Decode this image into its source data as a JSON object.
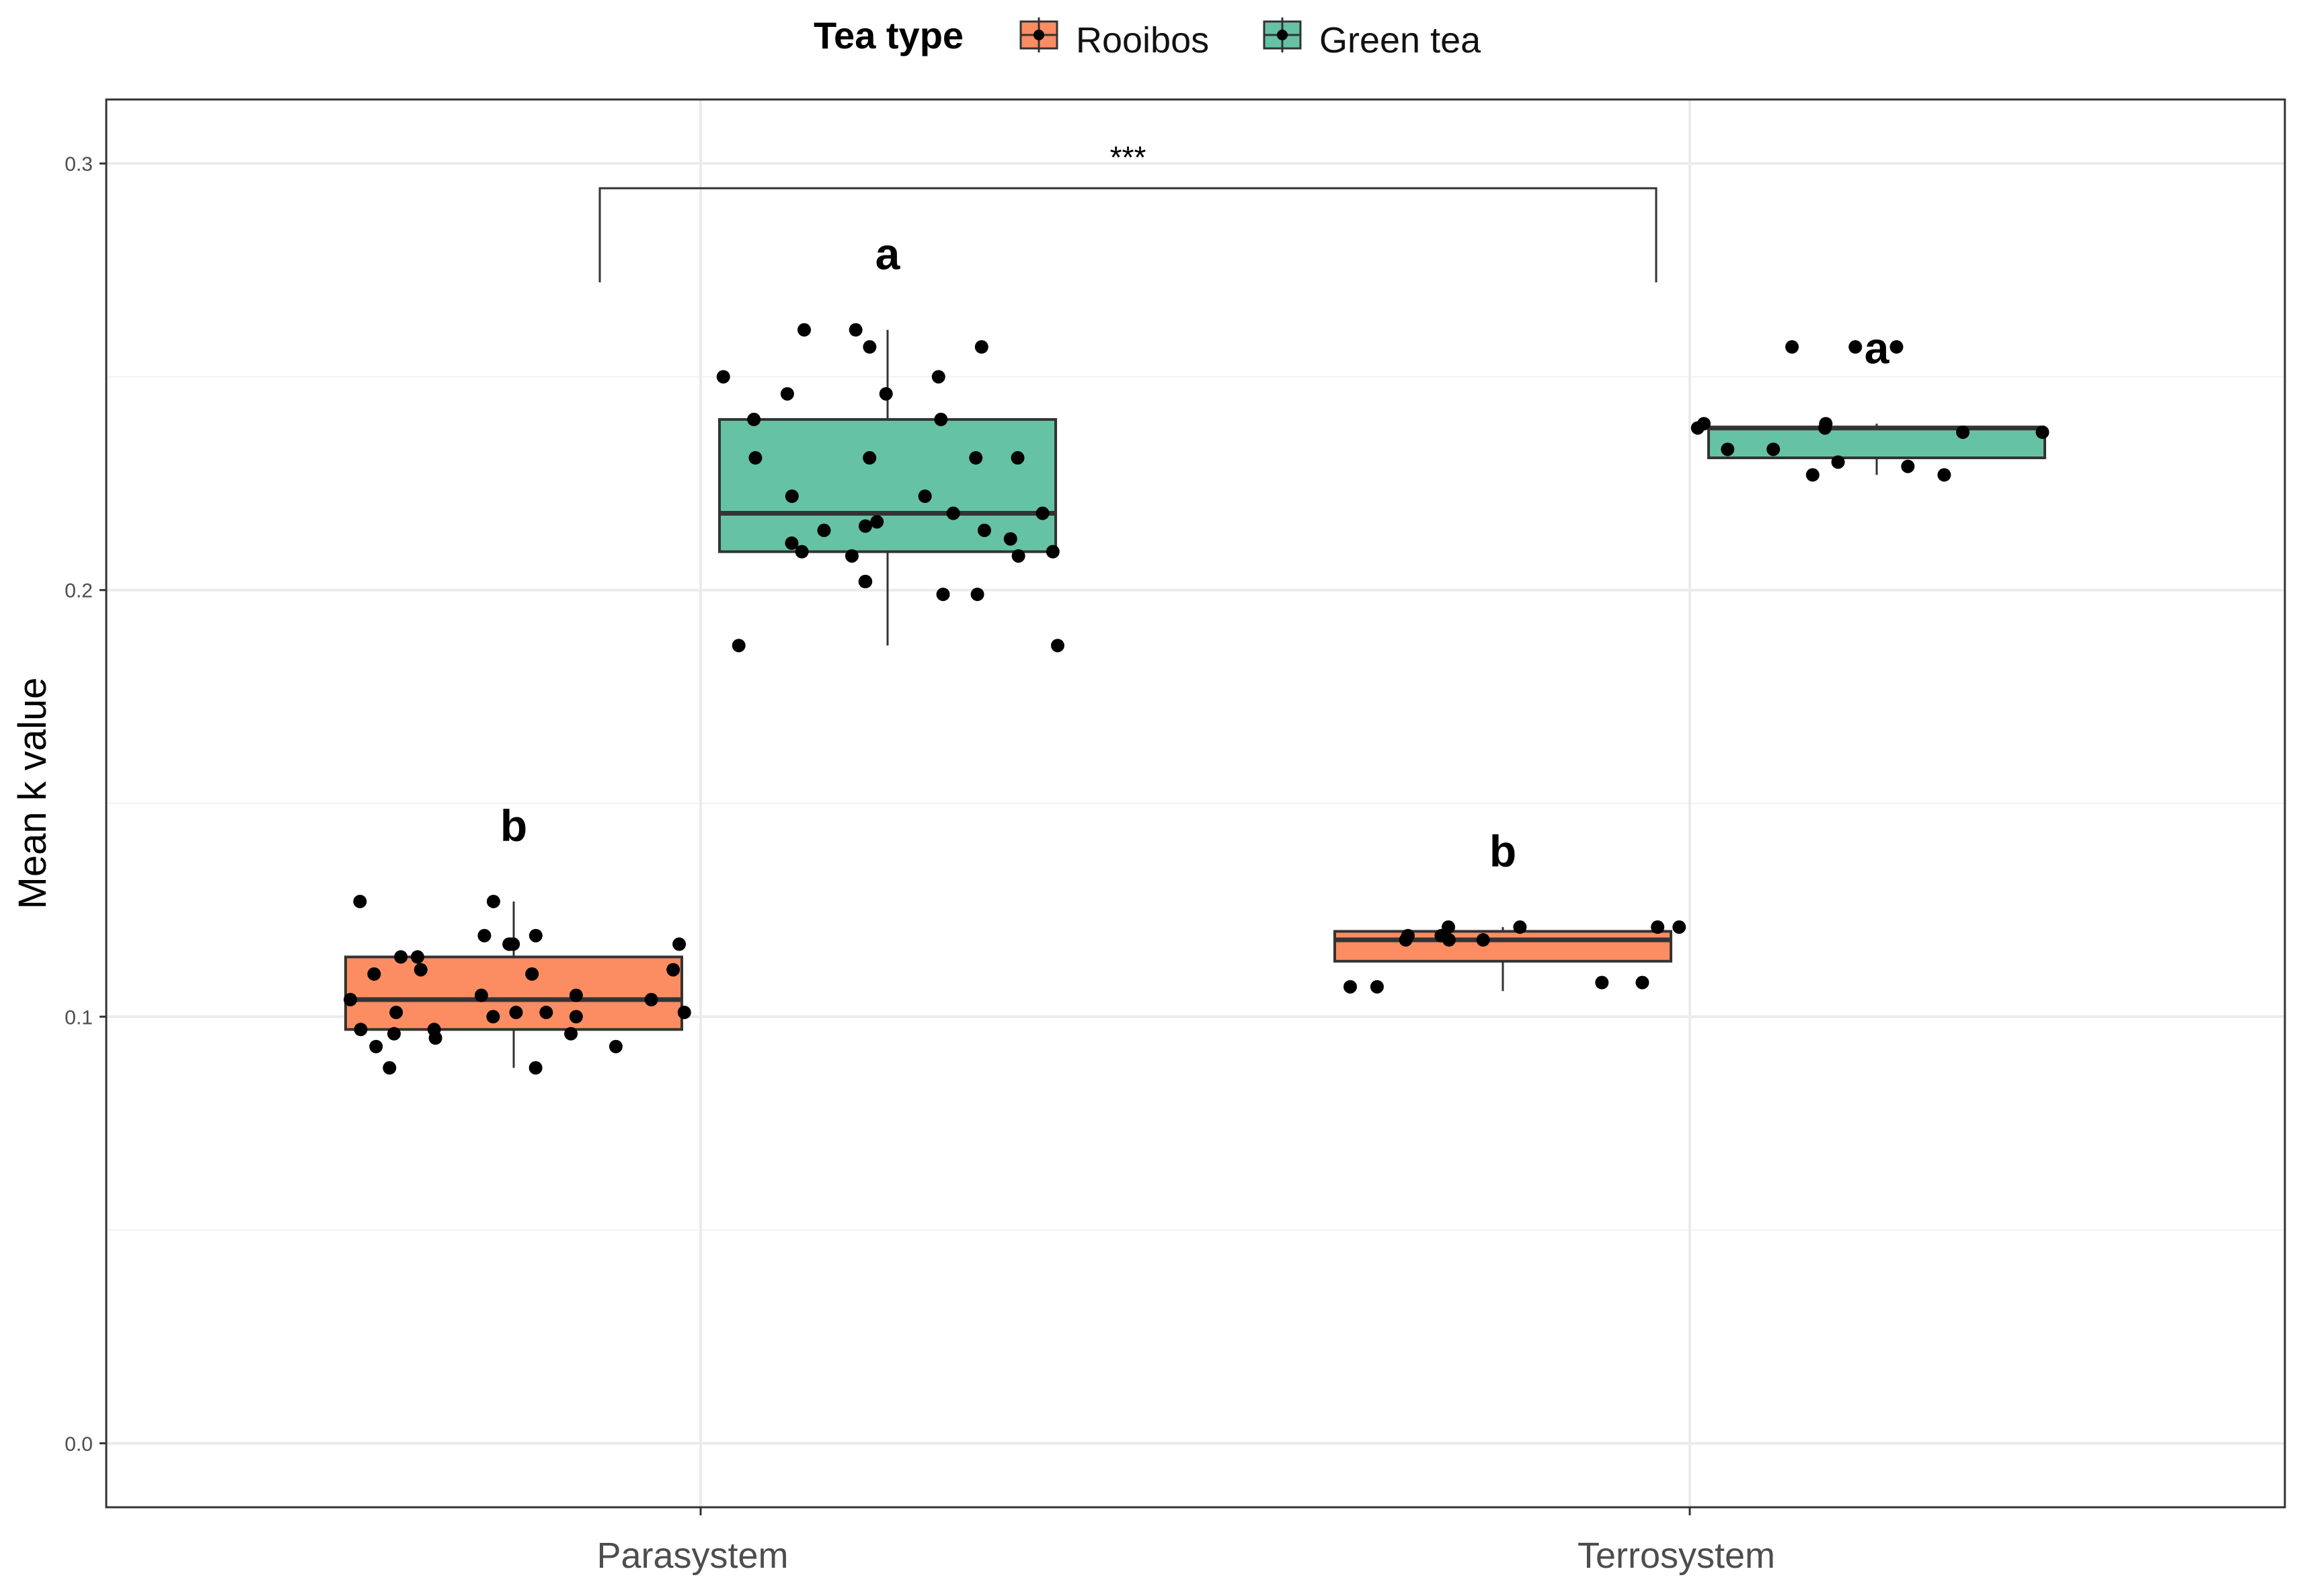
{
  "chart_data": {
    "type": "boxplot",
    "ylabel": "Mean k value",
    "xlabel": "",
    "ylim": [
      -0.015,
      0.315
    ],
    "y_ticks": [
      0.0,
      0.1,
      0.2,
      0.3
    ],
    "y_tick_labels": [
      "0.0",
      "0.1",
      "0.2",
      "0.3"
    ],
    "grid": true,
    "categories": [
      "Parasystem",
      "Terrosystem"
    ],
    "legend": {
      "title": "Tea type",
      "position": "top",
      "entries": [
        {
          "name": "Rooibos",
          "color": "#FC8D62"
        },
        {
          "name": "Green tea",
          "color": "#66C2A5"
        }
      ]
    },
    "series": [
      {
        "name": "Rooibos",
        "color": "#FC8D62",
        "boxes": [
          {
            "category": "Parasystem",
            "min": 0.088,
            "q1": 0.097,
            "median": 0.104,
            "q3": 0.114,
            "max": 0.127,
            "letter": "b",
            "points": [
              0.117,
              0.119,
              0.11,
              0.111,
              0.1,
              0.101,
              0.097,
              0.104,
              0.101,
              0.105,
              0.095,
              0.093,
              0.096,
              0.127,
              0.117,
              0.114,
              0.105,
              0.088,
              0.088,
              0.117,
              0.101,
              0.104,
              0.111,
              0.101,
              0.093,
              0.127,
              0.117,
              0.114,
              0.119,
              0.11,
              0.1,
              0.097,
              0.096
            ]
          },
          {
            "category": "Terrosystem",
            "min": 0.106,
            "q1": 0.113,
            "median": 0.118,
            "q3": 0.12,
            "max": 0.121,
            "letter": "b",
            "points": [
              0.121,
              0.118,
              0.118,
              0.121,
              0.119,
              0.107,
              0.108,
              0.118,
              0.121,
              0.107,
              0.121,
              0.119,
              0.108
            ]
          }
        ]
      },
      {
        "name": "Green tea",
        "color": "#66C2A5",
        "boxes": [
          {
            "category": "Parasystem",
            "min": 0.187,
            "q1": 0.209,
            "median": 0.218,
            "q3": 0.24,
            "max": 0.261,
            "letter": "a",
            "points": [
              0.216,
              0.211,
              0.222,
              0.208,
              0.257,
              0.199,
              0.231,
              0.246,
              0.231,
              0.187,
              0.25,
              0.261,
              0.218,
              0.24,
              0.209,
              0.214,
              0.202,
              0.246,
              0.215,
              0.212,
              0.257,
              0.202,
              0.209,
              0.222,
              0.231,
              0.24,
              0.261,
              0.214,
              0.231,
              0.187,
              0.218,
              0.208,
              0.199,
              0.25
            ]
          },
          {
            "category": "Terrosystem",
            "min": 0.227,
            "q1": 0.231,
            "median": 0.238,
            "q3": 0.238,
            "max": 0.239,
            "letter": "a",
            "points": [
              0.257,
              0.239,
              0.227,
              0.238,
              0.233,
              0.23,
              0.227,
              0.237,
              0.257,
              0.237,
              0.238,
              0.239,
              0.229,
              0.257,
              0.233
            ]
          }
        ]
      }
    ],
    "annotation": {
      "text": "***",
      "from": "Parasystem",
      "to": "Terrosystem"
    }
  }
}
